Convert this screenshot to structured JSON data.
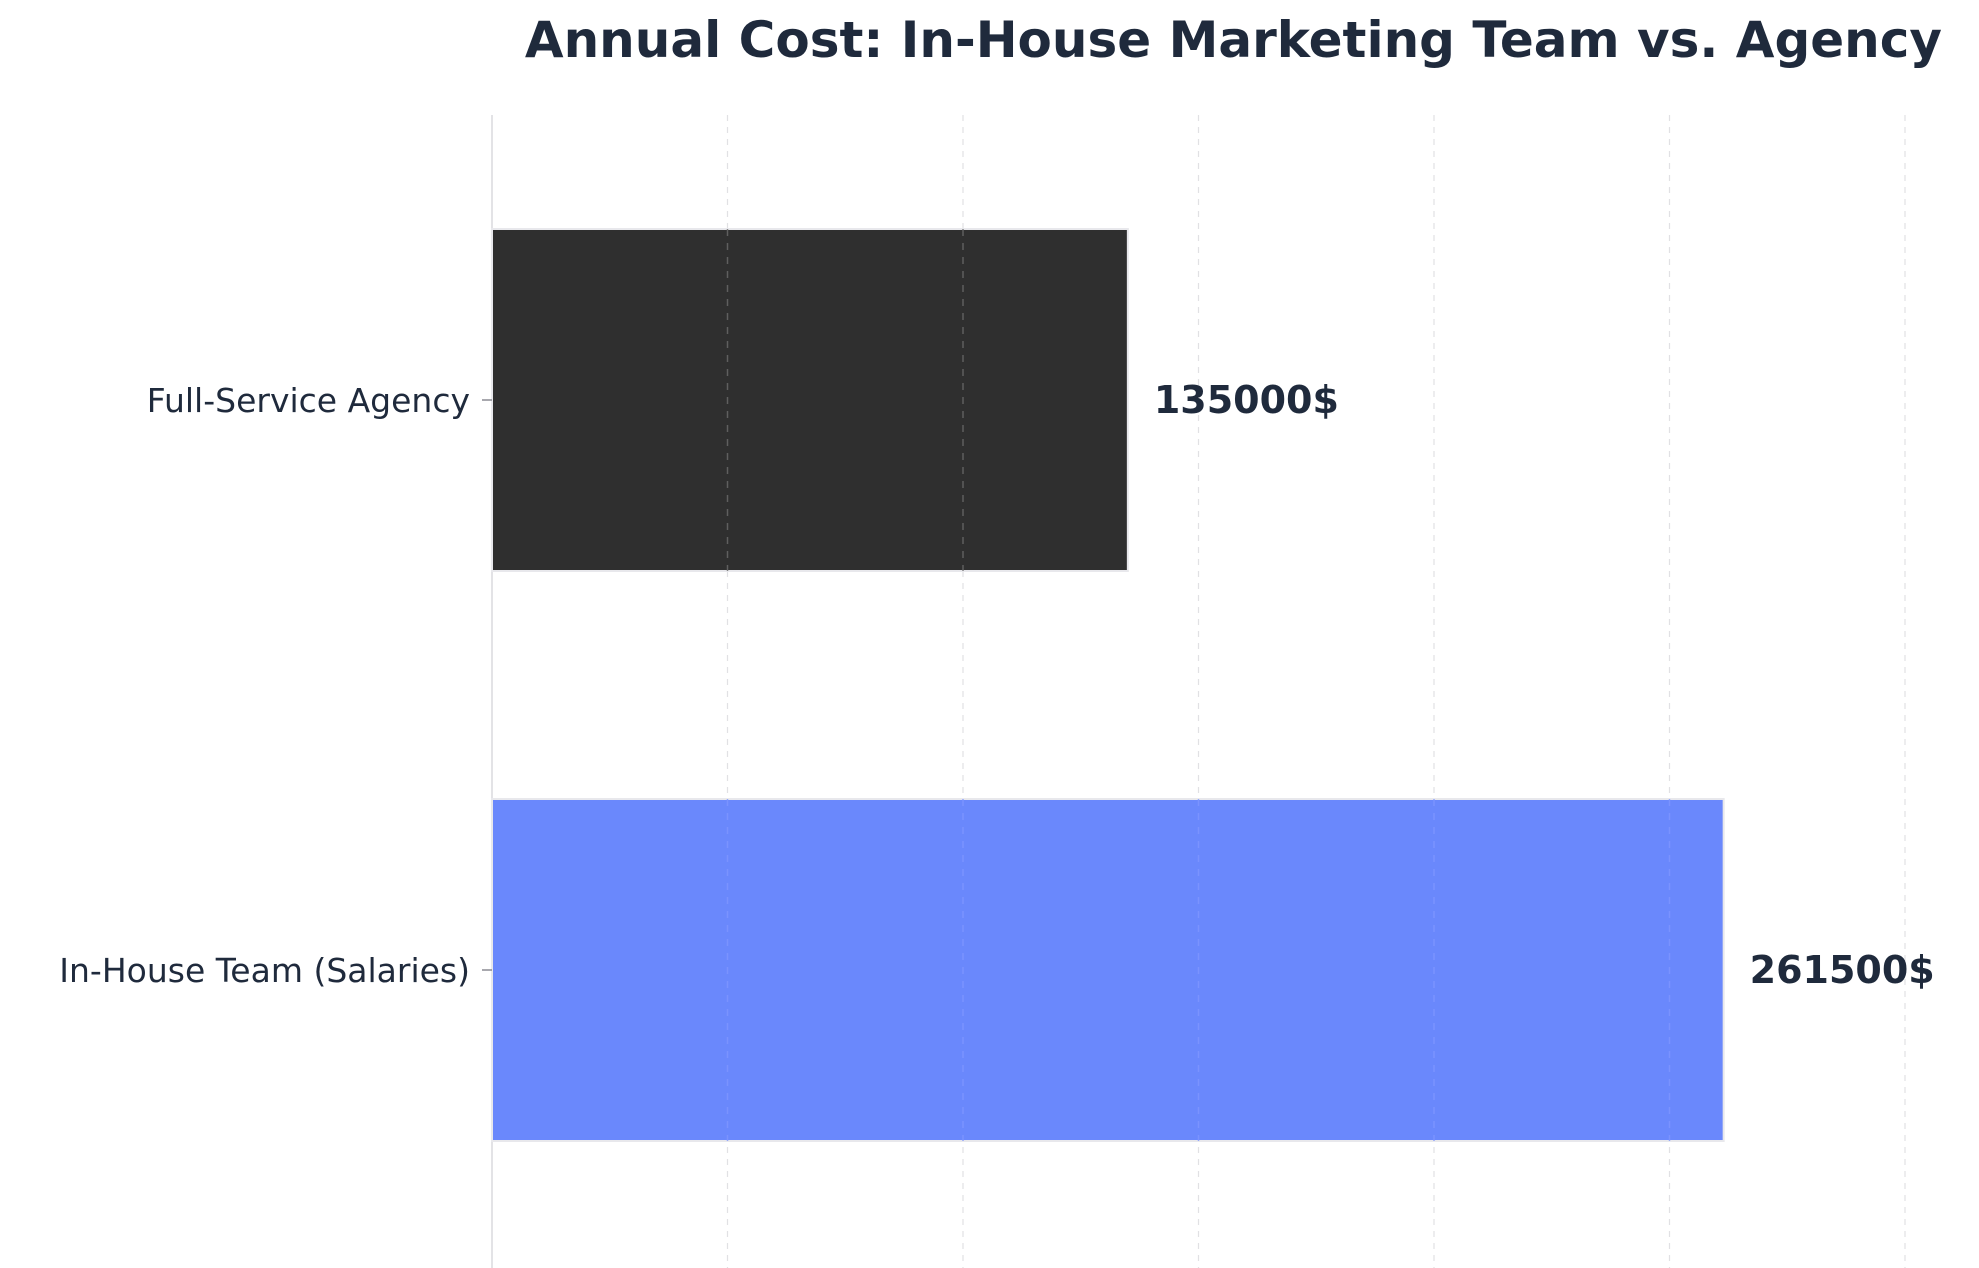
{
  "chart_data": {
    "type": "bar",
    "orientation": "horizontal",
    "title": "Annual Cost: In-House Marketing Team vs. Agency",
    "xlabel": "",
    "ylabel": "",
    "categories": [
      "Full-Service Agency",
      "In-House Team (Salaries)"
    ],
    "values": [
      135000,
      261500
    ],
    "value_labels": [
      "135000$",
      "261500$"
    ],
    "bar_colors": [
      "#2f2f2f",
      "#6a88fc"
    ],
    "xlim": [
      0,
      300000
    ],
    "grid": true,
    "grid_axis": "x",
    "legend": "none"
  },
  "colors": {
    "title": "#1f2a3c",
    "text": "#1f2a3c",
    "axis": "#e3e3e6",
    "grid": "#d8d8dc"
  }
}
